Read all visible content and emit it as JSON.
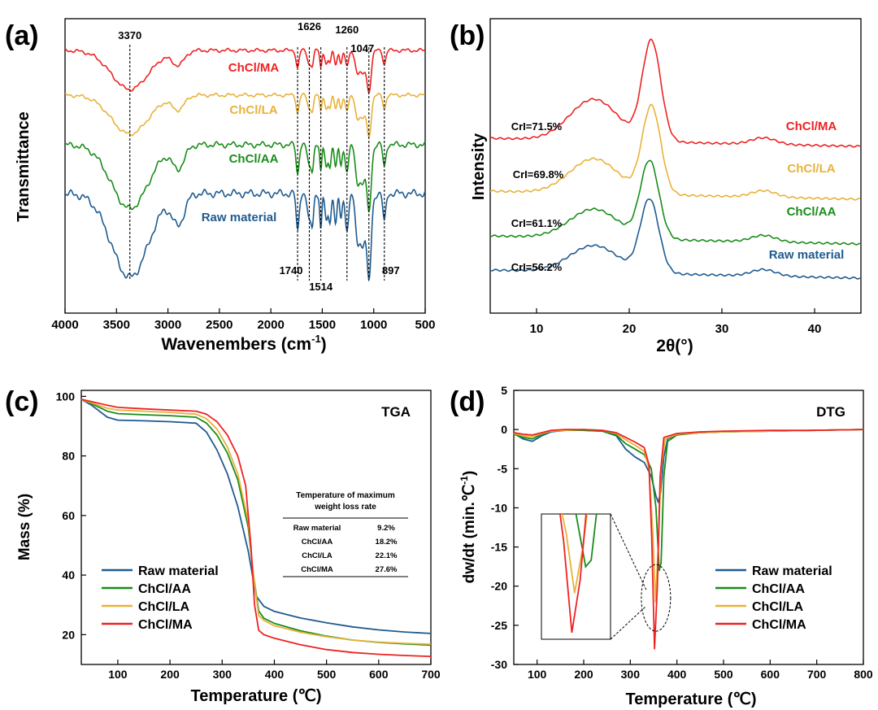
{
  "colors": {
    "raw": "#1f5b8f",
    "aa": "#1a8c1a",
    "la": "#e8b23a",
    "ma": "#ee2222",
    "axis": "#000000"
  },
  "chart_data": [
    {
      "panel": "(a)",
      "type": "line",
      "title": "",
      "xlabel": "Wavenembers (cm-1)",
      "xlabel_main": "Wavenembers (cm",
      "xlabel_sup": "-1",
      "xlabel_close": ")",
      "ylabel": "Transmittance",
      "xlim": [
        4000,
        500
      ],
      "xticks": [
        4000,
        3500,
        3000,
        2500,
        2000,
        1500,
        1000,
        500
      ],
      "peaks": [
        {
          "x": 3370,
          "label": "3370",
          "pos": "top"
        },
        {
          "x": 1740,
          "label": "1740",
          "pos": "bottom"
        },
        {
          "x": 1626,
          "label": "1626",
          "pos": "top"
        },
        {
          "x": 1514,
          "label": "1514",
          "pos": "bottom"
        },
        {
          "x": 1260,
          "label": "1260",
          "pos": "top"
        },
        {
          "x": 1047,
          "label": "1047",
          "pos": "top"
        },
        {
          "x": 897,
          "label": "897",
          "pos": "bottom"
        }
      ],
      "series": [
        {
          "name": "ChCl/MA",
          "key": "ma",
          "offset": 0.0,
          "scale": 0.58
        },
        {
          "name": "ChCl/LA",
          "key": "la",
          "offset": 1.0,
          "scale": 0.58
        },
        {
          "name": "ChCl/AA",
          "key": "aa",
          "offset": 2.0,
          "scale": 0.75
        },
        {
          "name": "Raw material",
          "key": "raw",
          "offset": 3.0,
          "scale": 0.85
        }
      ]
    },
    {
      "panel": "(b)",
      "type": "line",
      "title": "",
      "xlabel": "2θ(°)",
      "ylabel": "Intensity",
      "xlim": [
        5,
        45
      ],
      "xticks": [
        10,
        20,
        30,
        40
      ],
      "series": [
        {
          "name": "ChCl/MA",
          "key": "ma",
          "cri": "CrI=71.5%",
          "base": 3.0,
          "peak": 22.4,
          "height": 1.85
        },
        {
          "name": "ChCl/LA",
          "key": "la",
          "cri": "CrI=69.8%",
          "base": 2.0,
          "peak": 22.4,
          "height": 1.55
        },
        {
          "name": "ChCl/AA",
          "key": "aa",
          "cri": "CrI=61.1%",
          "base": 1.0,
          "peak": 22.2,
          "height": 1.3
        },
        {
          "name": "Raw material",
          "key": "raw",
          "cri": "CrI=56.2%",
          "base": 0.0,
          "peak": 22.2,
          "height": 1.2
        }
      ]
    },
    {
      "panel": "(c)",
      "type": "line",
      "title": "TGA",
      "xlabel": "Temperature (℃)",
      "ylabel": "Mass (%)",
      "xlim": [
        30,
        700
      ],
      "ylim": [
        10,
        102
      ],
      "xticks": [
        100,
        200,
        300,
        400,
        500,
        600,
        700
      ],
      "yticks": [
        20,
        40,
        60,
        80,
        100
      ],
      "series": [
        {
          "name": "Raw material",
          "key": "raw",
          "x": [
            30,
            50,
            80,
            100,
            150,
            200,
            250,
            270,
            290,
            310,
            330,
            350,
            365,
            380,
            400,
            450,
            500,
            550,
            600,
            650,
            700
          ],
          "y": [
            99,
            97,
            93,
            92,
            91.8,
            91.5,
            91,
            88,
            82,
            74,
            63,
            48,
            33,
            29.5,
            27.8,
            25.6,
            24,
            22.6,
            21.6,
            20.9,
            20.4
          ]
        },
        {
          "name": "ChCl/AA",
          "key": "aa",
          "x": [
            30,
            50,
            80,
            100,
            150,
            200,
            250,
            270,
            290,
            310,
            330,
            350,
            360,
            370,
            380,
            400,
            450,
            500,
            550,
            600,
            650,
            700
          ],
          "y": [
            99,
            97.5,
            95,
            94.2,
            93.8,
            93.5,
            93,
            91,
            87,
            81,
            72,
            56,
            40,
            28,
            25.5,
            23.8,
            21.3,
            19.5,
            18.2,
            17.4,
            16.9,
            16.5
          ]
        },
        {
          "name": "ChCl/LA",
          "key": "la",
          "x": [
            30,
            50,
            80,
            100,
            150,
            200,
            250,
            270,
            290,
            310,
            330,
            350,
            360,
            370,
            380,
            400,
            450,
            500,
            550,
            600,
            650,
            700
          ],
          "y": [
            99,
            97.8,
            96,
            95.4,
            95,
            94.6,
            94,
            92.5,
            89,
            83,
            74,
            58,
            40,
            26.5,
            24.8,
            23,
            20.8,
            19.3,
            18.2,
            17.5,
            17.1,
            16.8
          ]
        },
        {
          "name": "ChCl/MA",
          "key": "ma",
          "x": [
            30,
            50,
            80,
            100,
            150,
            200,
            250,
            270,
            290,
            310,
            330,
            345,
            355,
            362,
            370,
            380,
            400,
            450,
            500,
            550,
            600,
            650,
            700
          ],
          "y": [
            99,
            98.2,
            97,
            96.3,
            95.8,
            95.4,
            95,
            94,
            91.5,
            87,
            80,
            70,
            50,
            30,
            21.5,
            20,
            18.8,
            16.6,
            15,
            14,
            13.4,
            13,
            12.7
          ]
        }
      ],
      "table": {
        "header_line1": "Temperature of maximum",
        "header_line2": "weight loss rate",
        "rows": [
          {
            "name": "Raw material",
            "value": "9.2%"
          },
          {
            "name": "ChCl/AA",
            "value": "18.2%"
          },
          {
            "name": "ChCl/LA",
            "value": "22.1%"
          },
          {
            "name": "ChCl/MA",
            "value": "27.6%"
          }
        ]
      }
    },
    {
      "panel": "(d)",
      "type": "line",
      "title": "DTG",
      "xlabel": "Temperature (℃)",
      "ylabel": "dw/dt (min.℃-1)",
      "ylabel_main": "dw/dt (min.℃",
      "ylabel_sup": "-1",
      "ylabel_close": ")",
      "xlim": [
        50,
        800
      ],
      "ylim": [
        -30,
        5
      ],
      "xticks": [
        100,
        200,
        300,
        400,
        500,
        600,
        700,
        800
      ],
      "yticks": [
        5,
        0,
        -5,
        -10,
        -15,
        -20,
        -25,
        -30
      ],
      "series": [
        {
          "name": "Raw material",
          "key": "raw",
          "x": [
            50,
            70,
            90,
            110,
            130,
            160,
            200,
            240,
            270,
            290,
            310,
            330,
            345,
            355,
            360,
            365,
            372,
            380,
            400,
            450,
            500,
            600,
            700,
            800
          ],
          "y": [
            -0.5,
            -1.2,
            -1.5,
            -0.8,
            -0.3,
            -0.1,
            -0.1,
            -0.2,
            -0.8,
            -2.5,
            -3.5,
            -4.2,
            -6,
            -8.5,
            -9.3,
            -8,
            -3.5,
            -1.2,
            -0.6,
            -0.4,
            -0.3,
            -0.2,
            -0.1,
            0
          ]
        },
        {
          "name": "ChCl/AA",
          "key": "aa",
          "x": [
            50,
            70,
            90,
            110,
            130,
            160,
            200,
            240,
            270,
            290,
            310,
            330,
            345,
            355,
            362,
            366,
            372,
            380,
            400,
            450,
            500,
            600,
            700,
            800
          ],
          "y": [
            -0.6,
            -1,
            -1.2,
            -0.6,
            -0.2,
            -0.1,
            -0.1,
            -0.2,
            -0.7,
            -1.8,
            -2.5,
            -3.2,
            -5,
            -10,
            -18,
            -17,
            -6,
            -1.5,
            -0.7,
            -0.4,
            -0.3,
            -0.2,
            -0.1,
            0
          ]
        },
        {
          "name": "ChCl/LA",
          "key": "la",
          "x": [
            50,
            70,
            90,
            110,
            130,
            160,
            200,
            240,
            270,
            290,
            310,
            330,
            340,
            348,
            354,
            360,
            366,
            375,
            400,
            450,
            500,
            600,
            700,
            800
          ],
          "y": [
            -0.5,
            -0.8,
            -0.9,
            -0.5,
            -0.2,
            -0.1,
            0,
            -0.1,
            -0.5,
            -1.3,
            -2,
            -2.8,
            -5,
            -13,
            -22,
            -15,
            -5,
            -1.2,
            -0.6,
            -0.4,
            -0.3,
            -0.2,
            -0.1,
            0
          ]
        },
        {
          "name": "ChCl/MA",
          "key": "ma",
          "x": [
            50,
            70,
            90,
            110,
            130,
            160,
            200,
            240,
            270,
            290,
            310,
            330,
            340,
            346,
            352,
            358,
            364,
            372,
            400,
            450,
            500,
            600,
            700,
            800
          ],
          "y": [
            -0.4,
            -0.6,
            -0.7,
            -0.4,
            -0.1,
            0,
            0,
            -0.1,
            -0.4,
            -1,
            -1.6,
            -2.3,
            -4.5,
            -14,
            -28,
            -20,
            -6,
            -1,
            -0.5,
            -0.3,
            -0.2,
            -0.1,
            -0.1,
            0
          ]
        }
      ]
    }
  ],
  "panel_labels": {
    "a": "(a)",
    "b": "(b)",
    "c": "(c)",
    "d": "(d)"
  }
}
